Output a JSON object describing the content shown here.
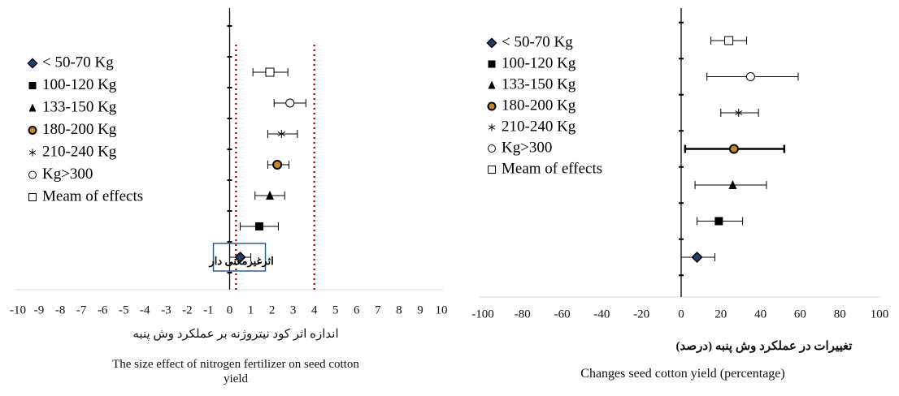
{
  "chart_data": [
    {
      "type": "forest",
      "categories": [
        "< 50-70 Kg",
        "100-120 Kg",
        "133-150 Kg",
        "180-200 Kg",
        "210-240 Kg",
        "Kg>300",
        "Meam of effects"
      ],
      "values": [
        0.5,
        1.4,
        1.9,
        2.25,
        2.45,
        2.85,
        1.9
      ],
      "lower": [
        0.0,
        0.5,
        1.2,
        1.8,
        1.8,
        2.1,
        1.1
      ],
      "upper": [
        1.0,
        2.3,
        2.6,
        2.8,
        3.2,
        3.6,
        2.75
      ],
      "markers": [
        "diamond",
        "square",
        "triangle",
        "dot",
        "asterisk",
        "circle",
        "open-square"
      ],
      "xlim": [
        -10,
        10
      ],
      "xticks": [
        -10,
        -9,
        -8,
        -7,
        -6,
        -5,
        -4,
        -3,
        -2,
        -1,
        0,
        1,
        2,
        3,
        4,
        5,
        6,
        7,
        8,
        9,
        10
      ],
      "reference_lines": [
        0.3,
        4
      ],
      "reference_color": "#cc0000",
      "annotation": "اثرغیرمعنی دار",
      "xlabel_fa": "اندازه اثر کود نیتروژنه بر عملکرد وش پنبه",
      "xlabel": "The size effect of nitrogen fertilizer on seed cotton yield"
    },
    {
      "type": "forest",
      "categories": [
        "< 50-70 Kg",
        "100-120 Kg",
        "133-150 Kg",
        "180-200 Kg",
        "210-240 Kg",
        "Kg>300",
        "Meam of effects"
      ],
      "values": [
        8,
        19,
        26,
        26.6,
        29,
        35,
        24
      ],
      "lower": [
        0,
        8,
        7,
        2,
        20,
        13,
        15
      ],
      "upper": [
        17,
        31,
        43,
        52,
        39,
        59,
        33
      ],
      "markers": [
        "diamond",
        "square",
        "triangle",
        "dot",
        "asterisk",
        "circle",
        "open-square"
      ],
      "line_widths": [
        1,
        1,
        1,
        2.5,
        1,
        1,
        1
      ],
      "xlim": [
        -100,
        100
      ],
      "xticks": [
        -100,
        -80,
        -60,
        -40,
        -20,
        0,
        20,
        40,
        60,
        80,
        100
      ],
      "xlabel_fa": "تغییرات در عملکرد وش پنبه (درصد)",
      "xlabel": "Changes seed cotton yield (percentage)"
    }
  ]
}
